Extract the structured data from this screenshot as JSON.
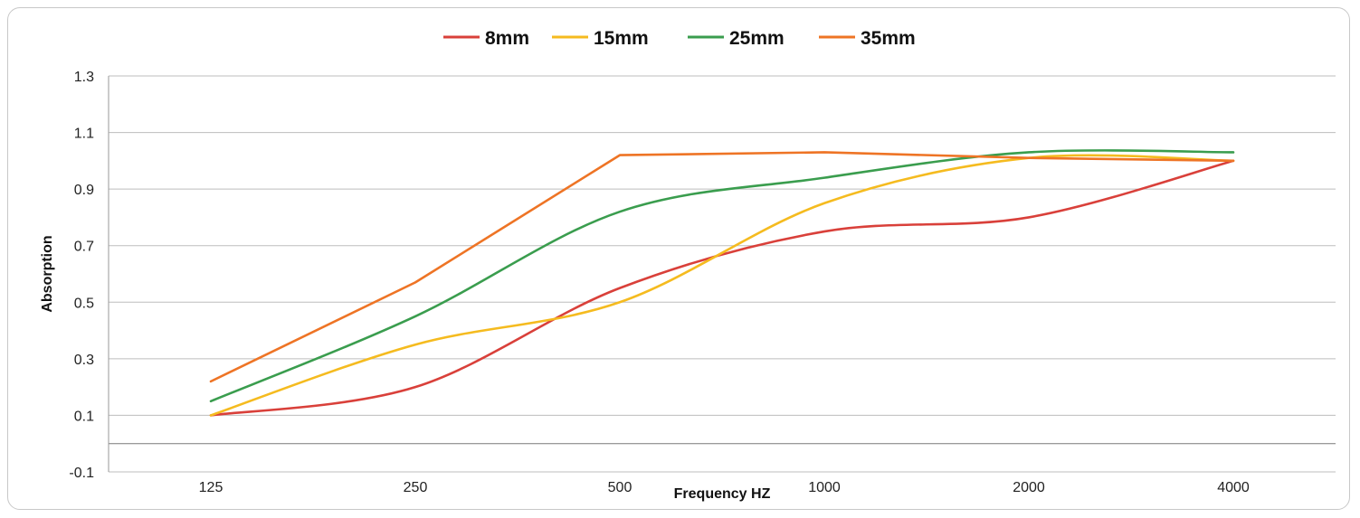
{
  "chart_data": {
    "type": "line",
    "categories": [
      "125",
      "250",
      "500",
      "1000",
      "2000",
      "4000"
    ],
    "y_ticks": [
      "-0.1",
      "0.1",
      "0.3",
      "0.5",
      "0.7",
      "0.9",
      "1.1",
      "1.3"
    ],
    "ylim": [
      -0.1,
      1.3
    ],
    "baseline": 0,
    "xlabel": "Frequency HZ",
    "ylabel": "Absorption",
    "grid": true,
    "legend_position": "top-center",
    "series": [
      {
        "name": "8mm",
        "color": "#d9403a",
        "smooth": true,
        "values": [
          0.1,
          0.2,
          0.55,
          0.75,
          0.8,
          1.0
        ]
      },
      {
        "name": "15mm",
        "color": "#f5bb1f",
        "smooth": true,
        "values": [
          0.1,
          0.35,
          0.5,
          0.85,
          1.01,
          1.0
        ]
      },
      {
        "name": "25mm",
        "color": "#3a9d4e",
        "smooth": true,
        "values": [
          0.15,
          0.45,
          0.82,
          0.94,
          1.03,
          1.03
        ]
      },
      {
        "name": "35mm",
        "color": "#ee7425",
        "smooth": false,
        "values": [
          0.22,
          0.57,
          1.02,
          1.03,
          1.01,
          1.0
        ]
      }
    ]
  }
}
